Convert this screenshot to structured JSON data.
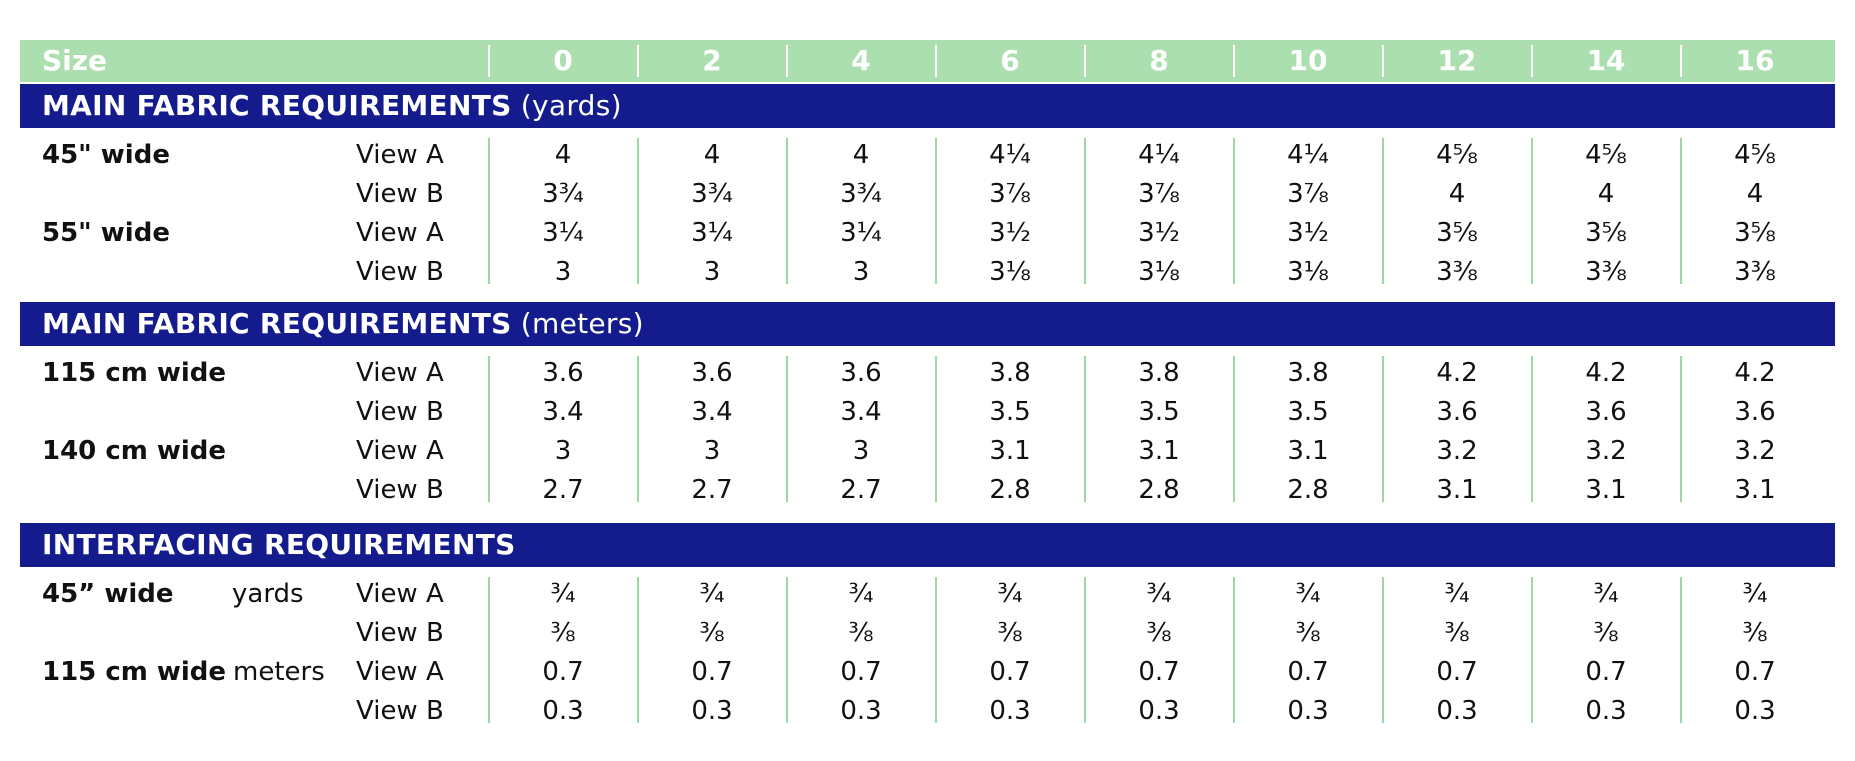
{
  "header": {
    "size_label": "Size",
    "sizes": [
      "0",
      "2",
      "4",
      "6",
      "8",
      "10",
      "12",
      "14",
      "16"
    ]
  },
  "sections": [
    {
      "title_bold": "MAIN FABRIC REQUIREMENTS",
      "title_suffix": "(yards)",
      "rows": [
        {
          "group": "45\" wide",
          "unit": "",
          "view": "View A",
          "values": [
            "4",
            "4",
            "4",
            "4¼",
            "4¼",
            "4¼",
            "4⅝",
            "4⅝",
            "4⅝"
          ]
        },
        {
          "group": "",
          "unit": "",
          "view": "View B",
          "values": [
            "3¾",
            "3¾",
            "3¾",
            "3⅞",
            "3⅞",
            "3⅞",
            "4",
            "4",
            "4"
          ]
        },
        {
          "group": "55\" wide",
          "unit": "",
          "view": "View A",
          "values": [
            "3¼",
            "3¼",
            "3¼",
            "3½",
            "3½",
            "3½",
            "3⅝",
            "3⅝",
            "3⅝"
          ]
        },
        {
          "group": "",
          "unit": "",
          "view": "View B",
          "values": [
            "3",
            "3",
            "3",
            "3⅛",
            "3⅛",
            "3⅛",
            "3⅜",
            "3⅜",
            "3⅜"
          ]
        }
      ]
    },
    {
      "title_bold": "MAIN FABRIC REQUIREMENTS",
      "title_suffix": "(meters)",
      "rows": [
        {
          "group": "115 cm wide",
          "unit": "",
          "view": "View A",
          "values": [
            "3.6",
            "3.6",
            "3.6",
            "3.8",
            "3.8",
            "3.8",
            "4.2",
            "4.2",
            "4.2"
          ]
        },
        {
          "group": "",
          "unit": "",
          "view": "View B",
          "values": [
            "3.4",
            "3.4",
            "3.4",
            "3.5",
            "3.5",
            "3.5",
            "3.6",
            "3.6",
            "3.6"
          ]
        },
        {
          "group": "140 cm wide",
          "unit": "",
          "view": "View A",
          "values": [
            "3",
            "3",
            "3",
            "3.1",
            "3.1",
            "3.1",
            "3.2",
            "3.2",
            "3.2"
          ]
        },
        {
          "group": "",
          "unit": "",
          "view": "View B",
          "values": [
            "2.7",
            "2.7",
            "2.7",
            "2.8",
            "2.8",
            "2.8",
            "3.1",
            "3.1",
            "3.1"
          ]
        }
      ]
    },
    {
      "title_bold": "INTERFACING REQUIREMENTS",
      "title_suffix": "",
      "rows": [
        {
          "group": "45” wide",
          "unit": "yards",
          "view": "View A",
          "values": [
            "¾",
            "¾",
            "¾",
            "¾",
            "¾",
            "¾",
            "¾",
            "¾",
            "¾"
          ]
        },
        {
          "group": "",
          "unit": "",
          "view": "View B",
          "values": [
            "⅜",
            "⅜",
            "⅜",
            "⅜",
            "⅜",
            "⅜",
            "⅜",
            "⅜",
            "⅜"
          ]
        },
        {
          "group": "115 cm wide",
          "unit": "meters",
          "view": "View A",
          "values": [
            "0.7",
            "0.7",
            "0.7",
            "0.7",
            "0.7",
            "0.7",
            "0.7",
            "0.7",
            "0.7"
          ]
        },
        {
          "group": "",
          "unit": "",
          "view": "View B",
          "values": [
            "0.3",
            "0.3",
            "0.3",
            "0.3",
            "0.3",
            "0.3",
            "0.3",
            "0.3",
            "0.3"
          ]
        }
      ]
    }
  ],
  "colors": {
    "header_bg": "#acdfb0",
    "section_bg": "#141b8c",
    "grid_line": "#9ed6a4"
  }
}
